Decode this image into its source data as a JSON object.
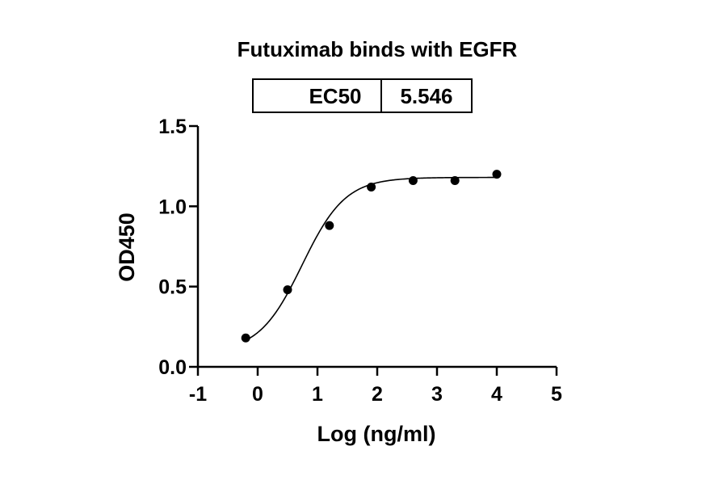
{
  "chart_data": {
    "type": "scatter",
    "title": "Futuximab binds with EGFR",
    "xlabel": "Log (ng/ml)",
    "ylabel": "OD450",
    "xlim": [
      -1,
      5
    ],
    "ylim": [
      0,
      1.5
    ],
    "x_ticks": [
      "-1",
      "0",
      "1",
      "2",
      "3",
      "4",
      "5"
    ],
    "y_ticks": [
      "0.0",
      "0.5",
      "1.0",
      "1.5"
    ],
    "grid": false,
    "legend": "none",
    "ec50_table": {
      "label": "EC50",
      "value": "5.546"
    },
    "series": [
      {
        "x": [
          -0.2,
          0.5,
          1.2,
          1.9,
          2.6,
          3.3,
          4.0
        ],
        "y": [
          0.18,
          0.48,
          0.88,
          1.12,
          1.16,
          1.16,
          1.2
        ],
        "fit": {
          "bottom": 0.09,
          "top": 1.18,
          "log_ec50": 0.744,
          "hill_slope": 1.2
        }
      }
    ],
    "colors": {
      "points": "#000000",
      "curve": "#000000",
      "axes": "#000000"
    }
  }
}
